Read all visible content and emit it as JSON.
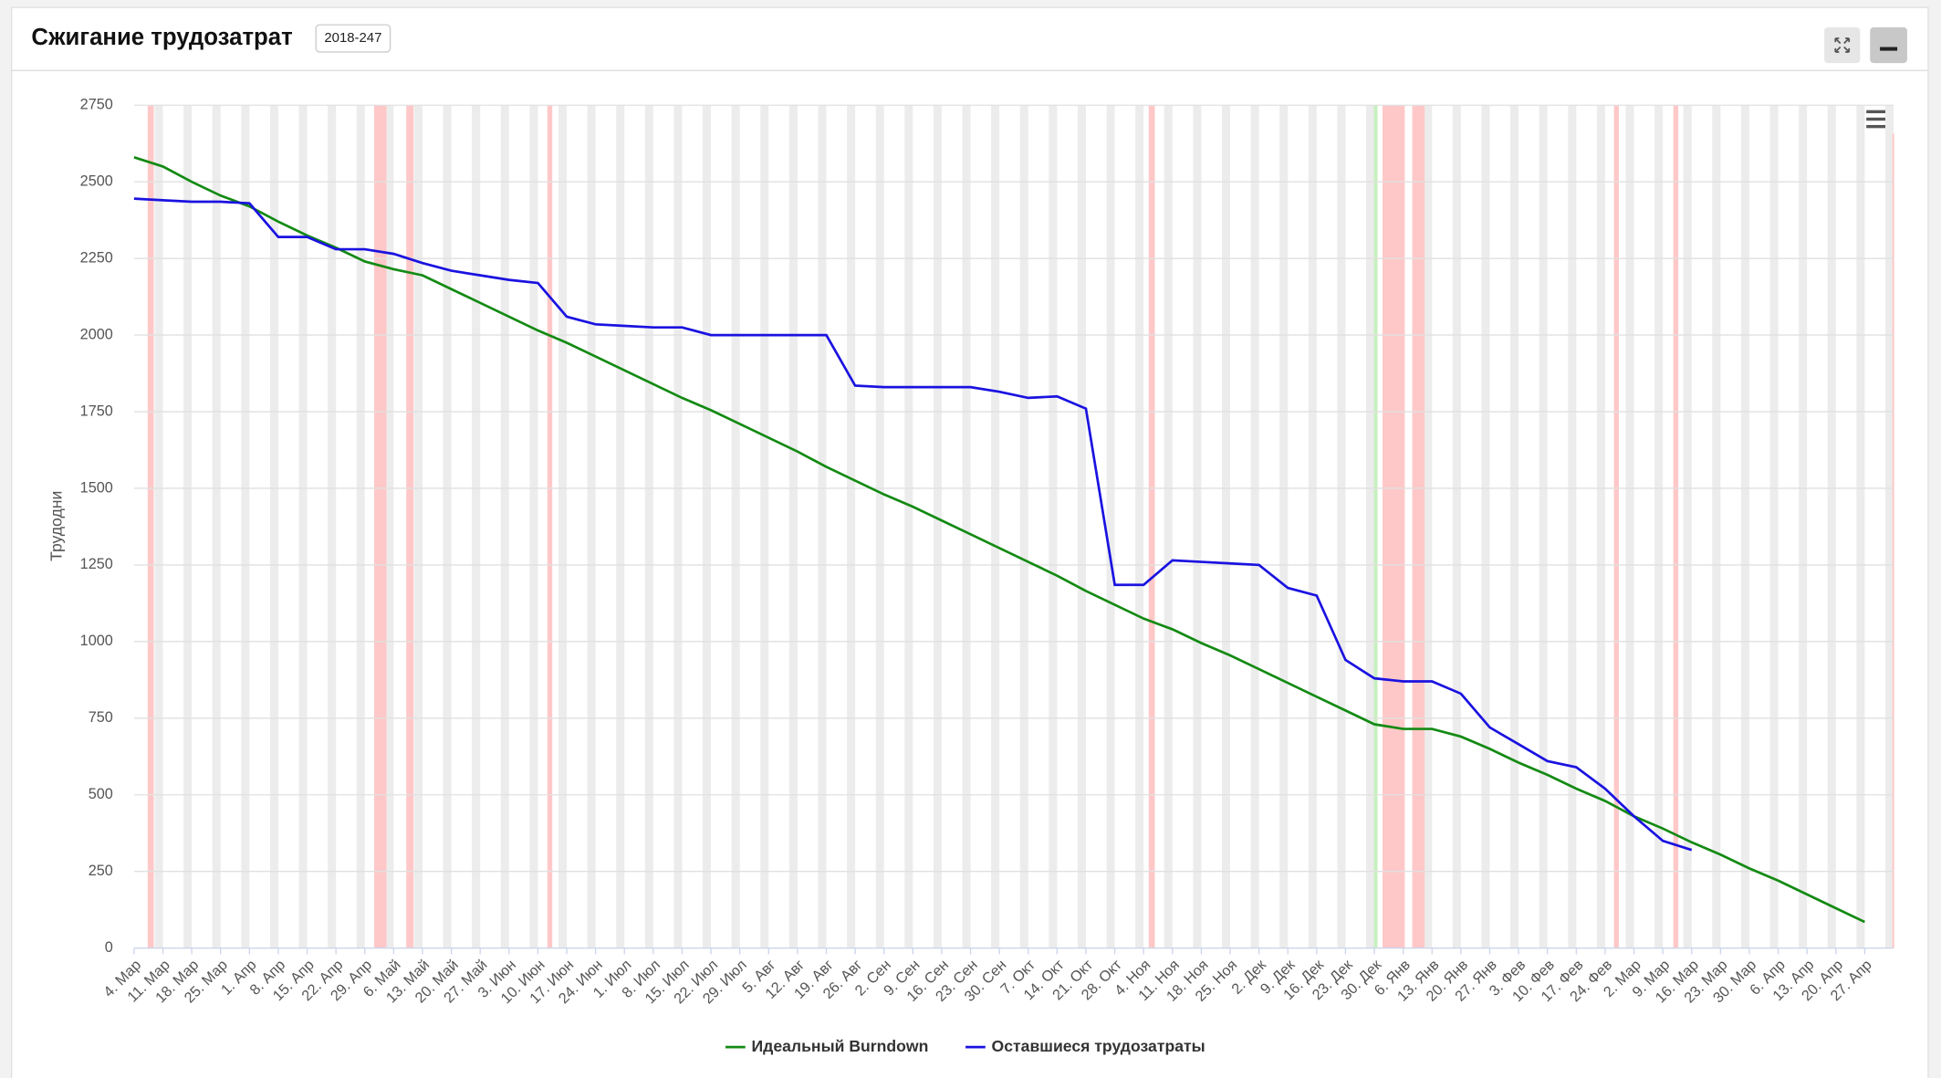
{
  "header": {
    "title": "Сжигание трудозатрат",
    "badge": "2018-247"
  },
  "chart_data": {
    "type": "line",
    "ylabel": "Трудодни",
    "categories": [
      "4. Мар",
      "11. Мар",
      "18. Мар",
      "25. Мар",
      "1. Апр",
      "8. Апр",
      "15. Апр",
      "22. Апр",
      "29. Апр",
      "6. Май",
      "13. Май",
      "20. Май",
      "27. Май",
      "3. Июн",
      "10. Июн",
      "17. Июн",
      "24. Июн",
      "1. Июл",
      "8. Июл",
      "15. Июл",
      "22. Июл",
      "29. Июл",
      "5. Авг",
      "12. Авг",
      "19. Авг",
      "26. Авг",
      "2. Сен",
      "9. Сен",
      "16. Сен",
      "23. Сен",
      "30. Сен",
      "7. Окт",
      "14. Окт",
      "21. Окт",
      "28. Окт",
      "4. Ноя",
      "11. Ноя",
      "18. Ноя",
      "25. Ноя",
      "2. Дек",
      "9. Дек",
      "16. Дек",
      "23. Дек",
      "30. Дек",
      "6. Янв",
      "13. Янв",
      "20. Янв",
      "27. Янв",
      "3. Фев",
      "10. Фев",
      "17. Фев",
      "24. Фев",
      "2. Мар",
      "9. Мар",
      "16. Мар",
      "23. Мар",
      "30. Мар",
      "6. Апр",
      "13. Апр",
      "20. Апр",
      "27. Апр"
    ],
    "series": [
      {
        "name": "Идеальный Burndown",
        "color": "#138a13",
        "values": [
          2580,
          2550,
          2500,
          2455,
          2420,
          2370,
          2325,
          2285,
          2240,
          2215,
          2195,
          2150,
          2105,
          2060,
          2015,
          1975,
          1930,
          1885,
          1840,
          1795,
          1755,
          1710,
          1665,
          1620,
          1570,
          1525,
          1480,
          1440,
          1395,
          1350,
          1305,
          1260,
          1215,
          1165,
          1120,
          1075,
          1040,
          995,
          955,
          910,
          865,
          820,
          775,
          730,
          715,
          715,
          690,
          650,
          605,
          565,
          520,
          480,
          430,
          390,
          345,
          305,
          260,
          220,
          175,
          130,
          85
        ]
      },
      {
        "name": "Оставшиеся трудозатраты",
        "color": "#1a12e0",
        "values": [
          2445,
          2440,
          2435,
          2435,
          2430,
          2320,
          2320,
          2280,
          2280,
          2265,
          2235,
          2210,
          2195,
          2180,
          2170,
          2060,
          2035,
          2030,
          2025,
          2025,
          2000,
          2000,
          2000,
          2000,
          2000,
          1835,
          1830,
          1830,
          1830,
          1830,
          1815,
          1795,
          1800,
          1760,
          1185,
          1185,
          1265,
          1260,
          1255,
          1250,
          1175,
          1150,
          940,
          880,
          870,
          870,
          830,
          720,
          665,
          610,
          590,
          520,
          430,
          350,
          320,
          null,
          null,
          null,
          null,
          null,
          null
        ]
      }
    ],
    "ylim": [
      0,
      2750
    ],
    "yticks": [
      0,
      250,
      500,
      750,
      1000,
      1250,
      1500,
      1750,
      2000,
      2250,
      2500,
      2750
    ],
    "grid": true,
    "legend": "bottom"
  }
}
